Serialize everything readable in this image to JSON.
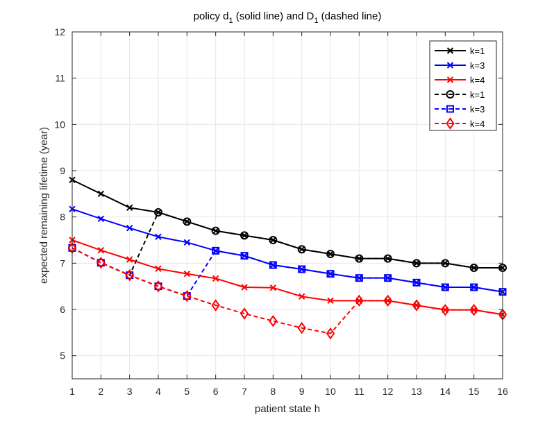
{
  "chart_data": {
    "type": "line",
    "title": {
      "prefix": "policy d",
      "sub1": "1",
      "middle": " (solid line) and D",
      "sub2": "1",
      "suffix": " (dashed line)"
    },
    "xlabel": "patient state h",
    "ylabel": "expected remaining lifetime (year)",
    "xlim": [
      1,
      16
    ],
    "ylim": [
      4.5,
      12
    ],
    "xticks": [
      "1",
      "2",
      "3",
      "4",
      "5",
      "6",
      "7",
      "8",
      "9",
      "10",
      "11",
      "12",
      "13",
      "14",
      "15",
      "16"
    ],
    "yticks": [
      "5",
      "6",
      "7",
      "8",
      "9",
      "10",
      "11",
      "12"
    ],
    "grid": true,
    "legend_position": "top-right",
    "series": [
      {
        "name": "k=1",
        "color": "#000000",
        "dash": "solid",
        "marker": "x",
        "x": [
          1,
          2,
          3,
          4,
          5,
          6,
          7,
          8,
          9,
          10,
          11,
          12,
          13,
          14,
          15,
          16
        ],
        "y": [
          8.8,
          8.5,
          8.2,
          8.1,
          7.9,
          7.7,
          7.6,
          7.5,
          7.3,
          7.2,
          7.1,
          7.1,
          7.0,
          7.0,
          6.9,
          6.9
        ]
      },
      {
        "name": "k=3",
        "color": "#0000ff",
        "dash": "solid",
        "marker": "x",
        "x": [
          1,
          2,
          3,
          4,
          5,
          6,
          7,
          8,
          9,
          10,
          11,
          12,
          13,
          14,
          15,
          16
        ],
        "y": [
          8.17,
          7.96,
          7.76,
          7.57,
          7.45,
          7.27,
          7.16,
          6.96,
          6.87,
          6.77,
          6.68,
          6.68,
          6.58,
          6.48,
          6.48,
          6.38
        ]
      },
      {
        "name": "k=4",
        "color": "#ff0000",
        "dash": "solid",
        "marker": "x",
        "x": [
          1,
          2,
          3,
          4,
          5,
          6,
          7,
          8,
          9,
          10,
          11,
          12,
          13,
          14,
          15,
          16
        ],
        "y": [
          7.5,
          7.28,
          7.08,
          6.88,
          6.77,
          6.67,
          6.48,
          6.47,
          6.28,
          6.19,
          6.19,
          6.19,
          6.09,
          5.99,
          5.99,
          5.89
        ]
      },
      {
        "name": "k=1",
        "color": "#000000",
        "dash": "dashed",
        "marker": "circle",
        "x": [
          1,
          2,
          3,
          4,
          5,
          6,
          7,
          8,
          9,
          10,
          11,
          12,
          13,
          14,
          15,
          16
        ],
        "y": [
          7.33,
          7.01,
          6.74,
          8.1,
          7.9,
          7.7,
          7.6,
          7.5,
          7.3,
          7.2,
          7.1,
          7.1,
          7.0,
          7.0,
          6.9,
          6.9
        ]
      },
      {
        "name": "k=3",
        "color": "#0000ff",
        "dash": "dashed",
        "marker": "square",
        "x": [
          1,
          2,
          3,
          4,
          5,
          6,
          7,
          8,
          9,
          10,
          11,
          12,
          13,
          14,
          15,
          16
        ],
        "y": [
          7.33,
          7.01,
          6.74,
          6.5,
          6.29,
          7.27,
          7.16,
          6.96,
          6.87,
          6.77,
          6.68,
          6.68,
          6.58,
          6.48,
          6.48,
          6.38
        ]
      },
      {
        "name": "k=4",
        "color": "#ff0000",
        "dash": "dashed",
        "marker": "diamond",
        "x": [
          1,
          2,
          3,
          4,
          5,
          6,
          7,
          8,
          9,
          10,
          11,
          12,
          13,
          14,
          15,
          16
        ],
        "y": [
          7.33,
          7.01,
          6.74,
          6.5,
          6.29,
          6.09,
          5.91,
          5.75,
          5.6,
          5.48,
          6.19,
          6.19,
          6.09,
          5.99,
          5.99,
          5.89
        ]
      }
    ]
  }
}
